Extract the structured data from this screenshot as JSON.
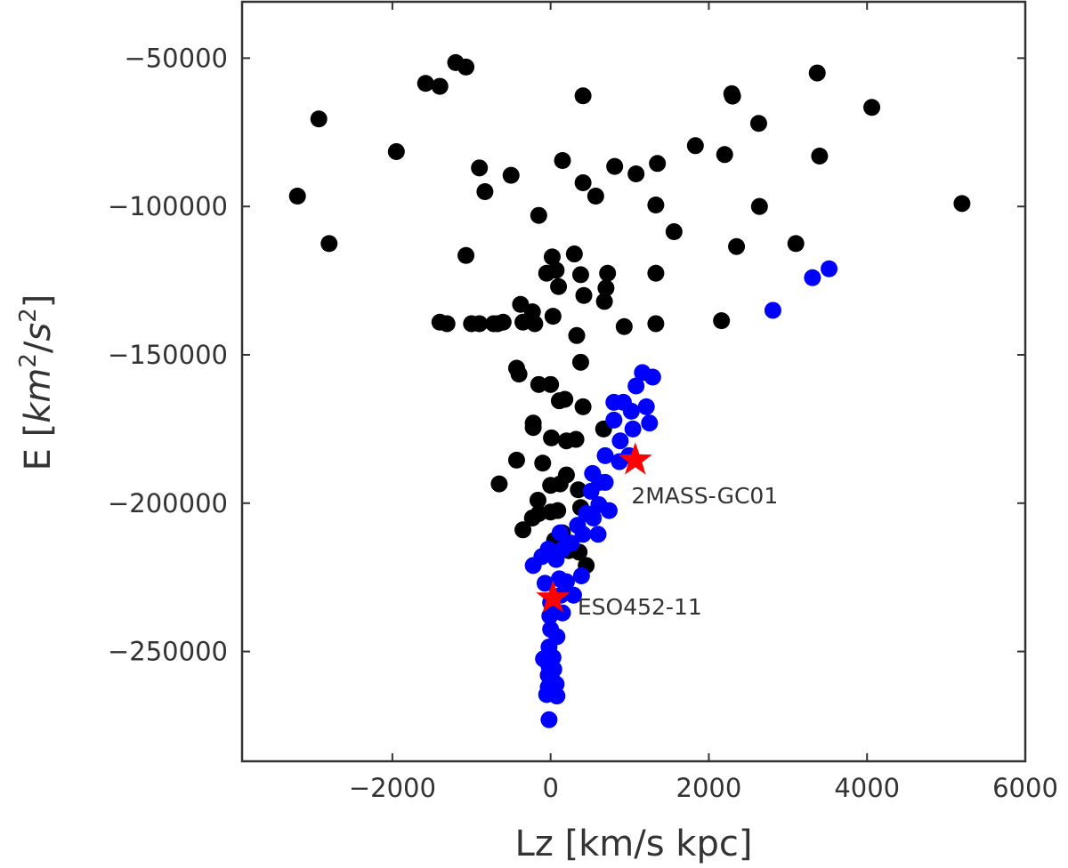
{
  "chart_data": {
    "type": "scatter",
    "title": "",
    "xlabel": "Lz [km/s kpc]",
    "ylabel_main": "E [",
    "ylabel_km": "km",
    "ylabel_sup1": "2",
    "ylabel_slash": "/",
    "ylabel_s": "s",
    "ylabel_sup2": "2",
    "ylabel_close": "]",
    "xlim": [
      -3900,
      6000
    ],
    "ylim": [
      -287000,
      -31000
    ],
    "x_ticks": [
      -2000,
      0,
      2000,
      4000,
      6000
    ],
    "x_tick_labels": [
      "−2000",
      "0",
      "2000",
      "4000",
      "6000"
    ],
    "y_ticks": [
      -50000,
      -100000,
      -150000,
      -200000,
      -250000
    ],
    "y_tick_labels": [
      "−50000",
      "−100000",
      "−150000",
      "−200000",
      "−250000"
    ],
    "grid": false,
    "legend": "none",
    "colors": {
      "black_series": "#000000",
      "blue_series": "#0000ff",
      "stars": "#ff0000"
    },
    "series": [
      {
        "color": "#000000",
        "points": [
          [
            -1200,
            -51500
          ],
          [
            -1070,
            -53000
          ],
          [
            -1580,
            -58500
          ],
          [
            -1400,
            -59500
          ],
          [
            -2930,
            -70500
          ],
          [
            -1950,
            -81500
          ],
          [
            -3200,
            -96500
          ],
          [
            -2800,
            -112500
          ],
          [
            -1070,
            -116500
          ],
          [
            -900,
            -87000
          ],
          [
            -830,
            -95000
          ],
          [
            -500,
            -89500
          ],
          [
            -150,
            -103000
          ],
          [
            150,
            -84500
          ],
          [
            410,
            -92000
          ],
          [
            410,
            -62700
          ],
          [
            570,
            -96500
          ],
          [
            810,
            -86500
          ],
          [
            1080,
            -89000
          ],
          [
            1350,
            -85500
          ],
          [
            1330,
            -99500
          ],
          [
            1560,
            -108500
          ],
          [
            1830,
            -79500
          ],
          [
            2200,
            -82500
          ],
          [
            2290,
            -62000
          ],
          [
            2300,
            -62800
          ],
          [
            2630,
            -72000
          ],
          [
            2640,
            -100000
          ],
          [
            2350,
            -113500
          ],
          [
            3100,
            -112500
          ],
          [
            3370,
            -55000
          ],
          [
            3400,
            -83000
          ],
          [
            4060,
            -66600
          ],
          [
            5200,
            -99000
          ],
          [
            2160,
            -138500
          ],
          [
            1330,
            -139500
          ],
          [
            1330,
            -122500
          ],
          [
            930,
            -140500
          ],
          [
            680,
            -132000
          ],
          [
            700,
            -127500
          ],
          [
            720,
            -122500
          ],
          [
            380,
            -123000
          ],
          [
            420,
            -130000
          ],
          [
            300,
            -116000
          ],
          [
            20,
            -117000
          ],
          [
            70,
            -121500
          ],
          [
            100,
            -127000
          ],
          [
            -50,
            -122500
          ],
          [
            -380,
            -133000
          ],
          [
            -230,
            -135500
          ],
          [
            -350,
            -139000
          ],
          [
            -670,
            -139500
          ],
          [
            -1310,
            -139500
          ],
          [
            -200,
            -139500
          ],
          [
            30,
            -137000
          ],
          [
            330,
            -143500
          ],
          [
            380,
            -152500
          ],
          [
            -720,
            -139500
          ],
          [
            -900,
            -139500
          ],
          [
            -1400,
            -139000
          ],
          [
            -1000,
            -139500
          ],
          [
            -600,
            -139000
          ],
          [
            -430,
            -154500
          ],
          [
            -400,
            -156500
          ],
          [
            -150,
            -160000
          ],
          [
            0,
            -160000
          ],
          [
            110,
            -165500
          ],
          [
            180,
            -165000
          ],
          [
            410,
            -167500
          ],
          [
            -220,
            -174500
          ],
          [
            -220,
            -173000
          ],
          [
            10,
            -178000
          ],
          [
            200,
            -179000
          ],
          [
            320,
            -178500
          ],
          [
            -430,
            -185500
          ],
          [
            -100,
            -186500
          ],
          [
            200,
            -190500
          ],
          [
            -650,
            -193500
          ],
          [
            -160,
            -199000
          ],
          [
            -150,
            -203500
          ],
          [
            0,
            -194000
          ],
          [
            120,
            -193500
          ],
          [
            350,
            -195500
          ],
          [
            380,
            -201500
          ],
          [
            -230,
            -205000
          ],
          [
            -350,
            -209000
          ],
          [
            0,
            -203000
          ],
          [
            90,
            -202500
          ],
          [
            150,
            -210000
          ],
          [
            230,
            -216000
          ],
          [
            360,
            -216500
          ],
          [
            450,
            -221000
          ],
          [
            50,
            -212500
          ],
          [
            670,
            -175000
          ]
        ]
      },
      {
        "color": "#0000ff",
        "points": [
          [
            3520,
            -121000
          ],
          [
            3310,
            -124000
          ],
          [
            2810,
            -135000
          ],
          [
            1160,
            -156000
          ],
          [
            1290,
            -157500
          ],
          [
            1080,
            -160500
          ],
          [
            800,
            -166000
          ],
          [
            920,
            -166000
          ],
          [
            1020,
            -169000
          ],
          [
            1210,
            -167500
          ],
          [
            1250,
            -173000
          ],
          [
            800,
            -172000
          ],
          [
            1040,
            -175000
          ],
          [
            880,
            -179000
          ],
          [
            690,
            -184000
          ],
          [
            870,
            -186000
          ],
          [
            990,
            -184000
          ],
          [
            530,
            -190000
          ],
          [
            620,
            -193000
          ],
          [
            690,
            -193000
          ],
          [
            510,
            -196000
          ],
          [
            610,
            -200500
          ],
          [
            740,
            -202500
          ],
          [
            450,
            -203500
          ],
          [
            540,
            -205000
          ],
          [
            340,
            -207500
          ],
          [
            410,
            -210500
          ],
          [
            120,
            -210000
          ],
          [
            600,
            -210500
          ],
          [
            260,
            -213500
          ],
          [
            150,
            -215500
          ],
          [
            -30,
            -215500
          ],
          [
            70,
            -219000
          ],
          [
            390,
            -224500
          ],
          [
            200,
            -226500
          ],
          [
            110,
            -225500
          ],
          [
            -220,
            -221000
          ],
          [
            -110,
            -218000
          ],
          [
            290,
            -231000
          ],
          [
            130,
            -231000
          ],
          [
            -70,
            -227000
          ],
          [
            0,
            -233500
          ],
          [
            150,
            -237000
          ],
          [
            -10,
            -238000
          ],
          [
            0,
            -242500
          ],
          [
            80,
            -245000
          ],
          [
            -20,
            -248500
          ],
          [
            30,
            -252000
          ],
          [
            -90,
            -252500
          ],
          [
            40,
            -256000
          ],
          [
            -30,
            -258000
          ],
          [
            70,
            -261000
          ],
          [
            -30,
            -262000
          ],
          [
            80,
            -265000
          ],
          [
            -50,
            -264500
          ],
          [
            -20,
            -273000
          ],
          [
            30,
            -260000
          ],
          [
            -20,
            -255000
          ]
        ]
      }
    ],
    "stars": [
      {
        "x": 1070,
        "y": -185500
      },
      {
        "x": 30,
        "y": -232000
      }
    ],
    "annotations": [
      {
        "text": "2MASS-GC01",
        "x": 1020,
        "y": -200000
      },
      {
        "text": "ESO452-11",
        "x": 340,
        "y": -237500
      }
    ]
  }
}
